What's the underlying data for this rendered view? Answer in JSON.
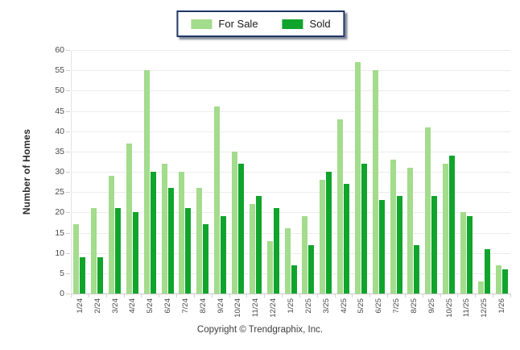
{
  "legend": {
    "border_color": "#1f3864",
    "items": [
      {
        "label": "For Sale",
        "color": "#a3dc8c"
      },
      {
        "label": "Sold",
        "color": "#10a42c"
      }
    ]
  },
  "footer": {
    "copyright": "Copyright © Trendgraphix, Inc."
  },
  "colors": {
    "for_sale": "#a3dc8c",
    "sold": "#10a42c",
    "gridline": "#ececec",
    "axis_line": "#c9c9c9",
    "tick_text": "#4a4a4a"
  },
  "chart_data": {
    "type": "bar",
    "title": "",
    "xlabel": "",
    "ylabel": "Number of Homes",
    "ylim": [
      0,
      60
    ],
    "ytick_step": 5,
    "grid": true,
    "legend_position": "top-center",
    "categories": [
      "1/24",
      "2/24",
      "3/24",
      "4/24",
      "5/24",
      "6/24",
      "7/24",
      "8/24",
      "9/24",
      "10/24",
      "11/24",
      "12/24",
      "1/25",
      "2/25",
      "3/25",
      "4/25",
      "5/25",
      "6/25",
      "7/25",
      "8/25",
      "9/25",
      "10/25",
      "11/25",
      "12/25",
      "1/26"
    ],
    "series": [
      {
        "name": "For Sale",
        "color": "#a3dc8c",
        "values": [
          17,
          21,
          29,
          37,
          55,
          32,
          30,
          26,
          46,
          35,
          22,
          13,
          16,
          19,
          28,
          43,
          57,
          55,
          33,
          31,
          41,
          32,
          20,
          3,
          7
        ]
      },
      {
        "name": "Sold",
        "color": "#10a42c",
        "values": [
          9,
          9,
          21,
          20,
          30,
          26,
          21,
          17,
          19,
          32,
          24,
          21,
          7,
          12,
          30,
          27,
          32,
          23,
          24,
          12,
          24,
          34,
          19,
          11,
          6
        ]
      }
    ]
  }
}
